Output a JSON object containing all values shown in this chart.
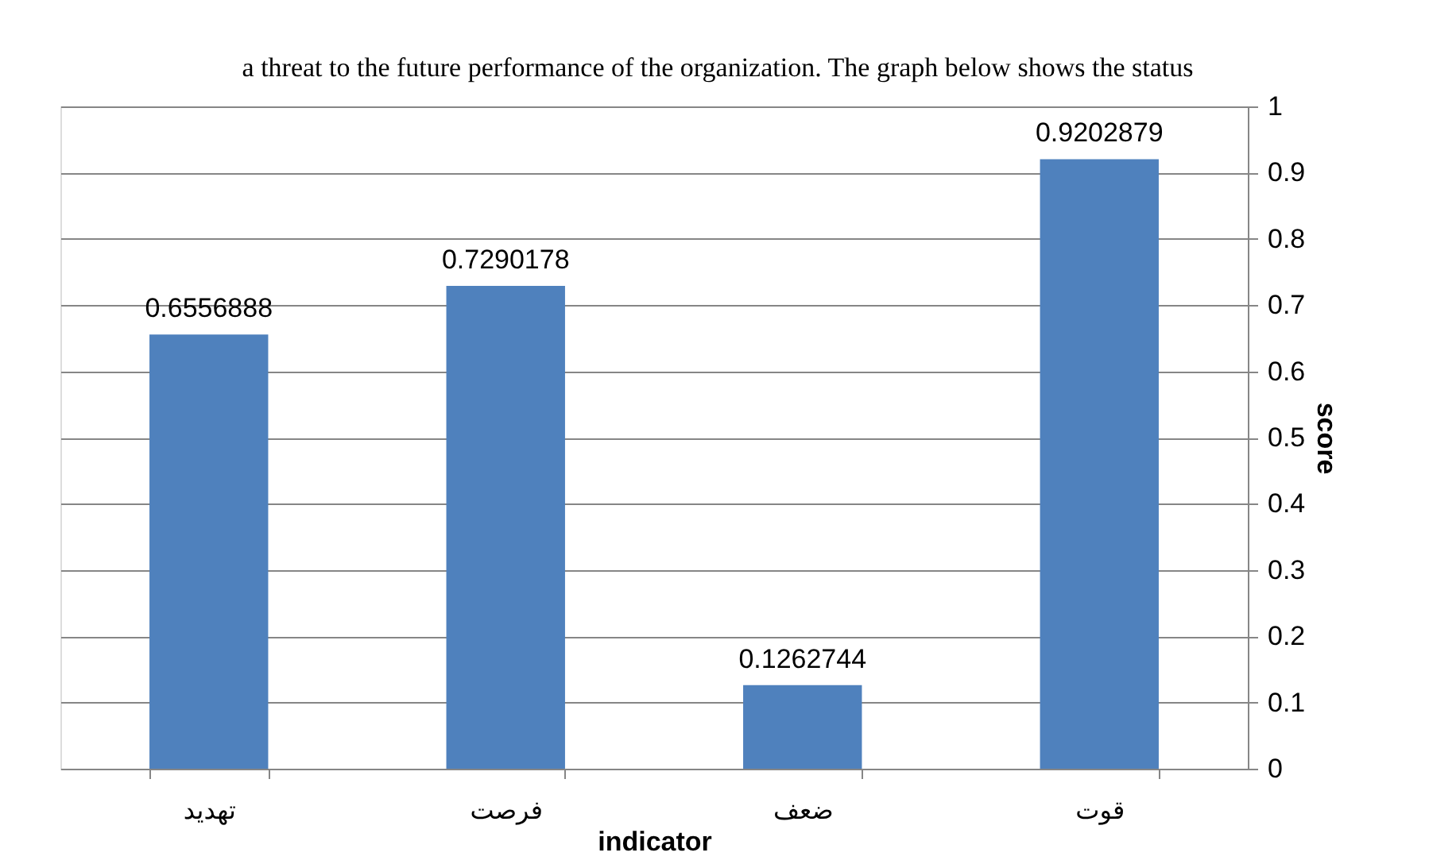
{
  "chart_data": {
    "type": "bar",
    "categories": [
      "تهدید",
      "فرصت",
      "ضعف",
      "قوت"
    ],
    "values": [
      0.6556888,
      0.7290178,
      0.1262744,
      0.9202879
    ],
    "color": "#4f81bd",
    "data_labels": true,
    "xlabel": "indicator",
    "ylabel": "score",
    "ylim": [
      0,
      1
    ],
    "yticks": [
      0,
      0.1,
      0.2,
      0.3,
      0.4,
      0.5,
      0.6,
      0.7,
      0.8,
      0.9,
      1
    ],
    "grid": "y",
    "annotations": [
      "a threat to the future performance of the organization. The graph below shows the status"
    ]
  }
}
